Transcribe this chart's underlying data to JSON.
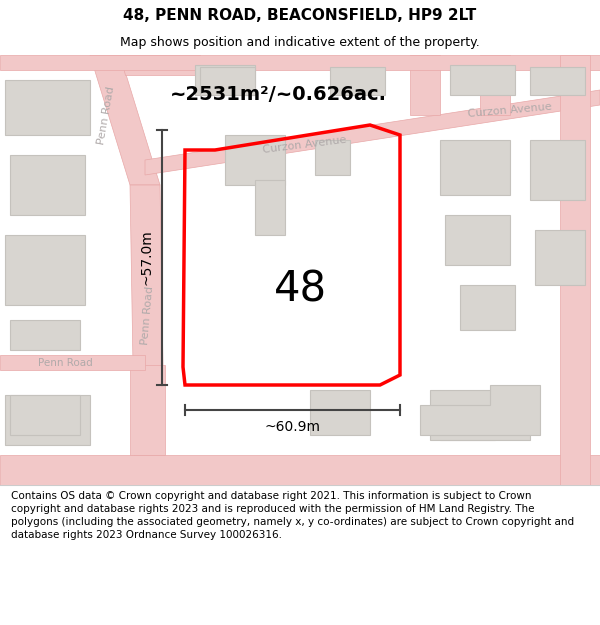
{
  "title": "48, PENN ROAD, BEACONSFIELD, HP9 2LT",
  "subtitle": "Map shows position and indicative extent of the property.",
  "footer": "Contains OS data © Crown copyright and database right 2021. This information is subject to Crown copyright and database rights 2023 and is reproduced with the permission of HM Land Registry. The polygons (including the associated geometry, namely x, y co-ordinates) are subject to Crown copyright and database rights 2023 Ordnance Survey 100026316.",
  "area_label": "~2531m²/~0.626ac.",
  "width_label": "~60.9m",
  "height_label": "~57.0m",
  "property_number": "48",
  "map_bg": "#f5f3f0",
  "road_fill": "#f2c8c8",
  "road_edge": "#e8a8a8",
  "bld_fill": "#d8d5d0",
  "bld_edge": "#c5c2bd",
  "red_color": "#ff0000",
  "dim_color": "#444444",
  "road_label_color": "#b0aaaa",
  "title_fontsize": 11,
  "subtitle_fontsize": 9,
  "footer_fontsize": 7.5,
  "area_fontsize": 14,
  "number_fontsize": 30,
  "dim_fontsize": 10,
  "road_label_fontsize": 8
}
